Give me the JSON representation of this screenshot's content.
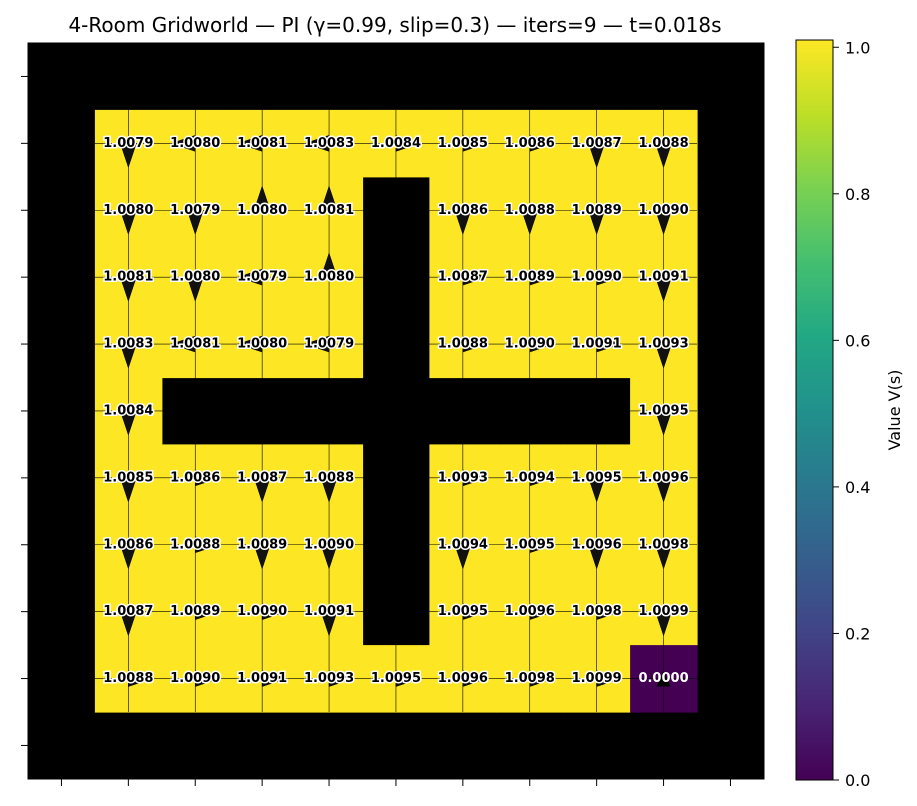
{
  "chart_data": {
    "type": "heatmap",
    "title": "4-Room Gridworld — PI (γ=0.99, slip=0.3) — iters=9 — t=0.018s",
    "grid_size": [
      11,
      11
    ],
    "wall_color": "#000000",
    "high_color": "#fde725",
    "low_color": "#440154",
    "colorbar": {
      "label": "Value V(s)",
      "range": [
        0,
        1.0099
      ],
      "ticks": [
        "0.0",
        "0.2",
        "0.4",
        "0.6",
        "0.8",
        "1.0"
      ],
      "tick_values": [
        0.0,
        0.2,
        0.4,
        0.6,
        0.8,
        1.0
      ]
    },
    "cells": [
      {
        "row": 1,
        "col": 1,
        "value": "1.0079",
        "action": "down"
      },
      {
        "row": 1,
        "col": 2,
        "value": "1.0080",
        "action": "left"
      },
      {
        "row": 1,
        "col": 3,
        "value": "1.0081",
        "action": "left"
      },
      {
        "row": 1,
        "col": 4,
        "value": "1.0083",
        "action": "left"
      },
      {
        "row": 1,
        "col": 5,
        "value": "1.0084",
        "action": "right"
      },
      {
        "row": 1,
        "col": 6,
        "value": "1.0085",
        "action": "right"
      },
      {
        "row": 1,
        "col": 7,
        "value": "1.0086",
        "action": "right"
      },
      {
        "row": 1,
        "col": 8,
        "value": "1.0087",
        "action": "down"
      },
      {
        "row": 1,
        "col": 9,
        "value": "1.0088",
        "action": "down"
      },
      {
        "row": 2,
        "col": 1,
        "value": "1.0080",
        "action": "down"
      },
      {
        "row": 2,
        "col": 2,
        "value": "1.0079",
        "action": "down"
      },
      {
        "row": 2,
        "col": 3,
        "value": "1.0080",
        "action": "up"
      },
      {
        "row": 2,
        "col": 4,
        "value": "1.0081",
        "action": "up"
      },
      {
        "row": 2,
        "col": 6,
        "value": "1.0086",
        "action": "down"
      },
      {
        "row": 2,
        "col": 7,
        "value": "1.0088",
        "action": "down"
      },
      {
        "row": 2,
        "col": 8,
        "value": "1.0089",
        "action": "down"
      },
      {
        "row": 2,
        "col": 9,
        "value": "1.0090",
        "action": "down"
      },
      {
        "row": 3,
        "col": 1,
        "value": "1.0081",
        "action": "down"
      },
      {
        "row": 3,
        "col": 2,
        "value": "1.0080",
        "action": "down"
      },
      {
        "row": 3,
        "col": 3,
        "value": "1.0079",
        "action": "left"
      },
      {
        "row": 3,
        "col": 4,
        "value": "1.0080",
        "action": "up"
      },
      {
        "row": 3,
        "col": 6,
        "value": "1.0087",
        "action": "right"
      },
      {
        "row": 3,
        "col": 7,
        "value": "1.0089",
        "action": "right"
      },
      {
        "row": 3,
        "col": 8,
        "value": "1.0090",
        "action": "right"
      },
      {
        "row": 3,
        "col": 9,
        "value": "1.0091",
        "action": "down"
      },
      {
        "row": 4,
        "col": 1,
        "value": "1.0083",
        "action": "down"
      },
      {
        "row": 4,
        "col": 2,
        "value": "1.0081",
        "action": "left"
      },
      {
        "row": 4,
        "col": 3,
        "value": "1.0080",
        "action": "left"
      },
      {
        "row": 4,
        "col": 4,
        "value": "1.0079",
        "action": "left"
      },
      {
        "row": 4,
        "col": 6,
        "value": "1.0088",
        "action": "right"
      },
      {
        "row": 4,
        "col": 7,
        "value": "1.0090",
        "action": "right"
      },
      {
        "row": 4,
        "col": 8,
        "value": "1.0091",
        "action": "right"
      },
      {
        "row": 4,
        "col": 9,
        "value": "1.0093",
        "action": "down"
      },
      {
        "row": 5,
        "col": 1,
        "value": "1.0084",
        "action": "down"
      },
      {
        "row": 5,
        "col": 9,
        "value": "1.0095",
        "action": "down"
      },
      {
        "row": 6,
        "col": 1,
        "value": "1.0085",
        "action": "down"
      },
      {
        "row": 6,
        "col": 2,
        "value": "1.0086",
        "action": "right"
      },
      {
        "row": 6,
        "col": 3,
        "value": "1.0087",
        "action": "down"
      },
      {
        "row": 6,
        "col": 4,
        "value": "1.0088",
        "action": "down"
      },
      {
        "row": 6,
        "col": 6,
        "value": "1.0093",
        "action": "right"
      },
      {
        "row": 6,
        "col": 7,
        "value": "1.0094",
        "action": "right"
      },
      {
        "row": 6,
        "col": 8,
        "value": "1.0095",
        "action": "down"
      },
      {
        "row": 6,
        "col": 9,
        "value": "1.0096",
        "action": "down"
      },
      {
        "row": 7,
        "col": 1,
        "value": "1.0086",
        "action": "down"
      },
      {
        "row": 7,
        "col": 2,
        "value": "1.0088",
        "action": "right"
      },
      {
        "row": 7,
        "col": 3,
        "value": "1.0089",
        "action": "down"
      },
      {
        "row": 7,
        "col": 4,
        "value": "1.0090",
        "action": "down"
      },
      {
        "row": 7,
        "col": 6,
        "value": "1.0094",
        "action": "down"
      },
      {
        "row": 7,
        "col": 7,
        "value": "1.0095",
        "action": "right"
      },
      {
        "row": 7,
        "col": 8,
        "value": "1.0096",
        "action": "down"
      },
      {
        "row": 7,
        "col": 9,
        "value": "1.0098",
        "action": "down"
      },
      {
        "row": 8,
        "col": 1,
        "value": "1.0087",
        "action": "down"
      },
      {
        "row": 8,
        "col": 2,
        "value": "1.0089",
        "action": "right"
      },
      {
        "row": 8,
        "col": 3,
        "value": "1.0090",
        "action": "right"
      },
      {
        "row": 8,
        "col": 4,
        "value": "1.0091",
        "action": "down"
      },
      {
        "row": 8,
        "col": 6,
        "value": "1.0095",
        "action": "right"
      },
      {
        "row": 8,
        "col": 7,
        "value": "1.0096",
        "action": "right"
      },
      {
        "row": 8,
        "col": 8,
        "value": "1.0098",
        "action": "right"
      },
      {
        "row": 8,
        "col": 9,
        "value": "1.0099",
        "action": "down"
      },
      {
        "row": 9,
        "col": 1,
        "value": "1.0088",
        "action": "right"
      },
      {
        "row": 9,
        "col": 2,
        "value": "1.0090",
        "action": "right"
      },
      {
        "row": 9,
        "col": 3,
        "value": "1.0091",
        "action": "right"
      },
      {
        "row": 9,
        "col": 4,
        "value": "1.0093",
        "action": "right"
      },
      {
        "row": 9,
        "col": 5,
        "value": "1.0095",
        "action": "right"
      },
      {
        "row": 9,
        "col": 6,
        "value": "1.0096",
        "action": "right"
      },
      {
        "row": 9,
        "col": 7,
        "value": "1.0098",
        "action": "right"
      },
      {
        "row": 9,
        "col": 8,
        "value": "1.0099",
        "action": "right"
      },
      {
        "row": 9,
        "col": 9,
        "value": "0.0000",
        "action": "goal"
      }
    ]
  }
}
